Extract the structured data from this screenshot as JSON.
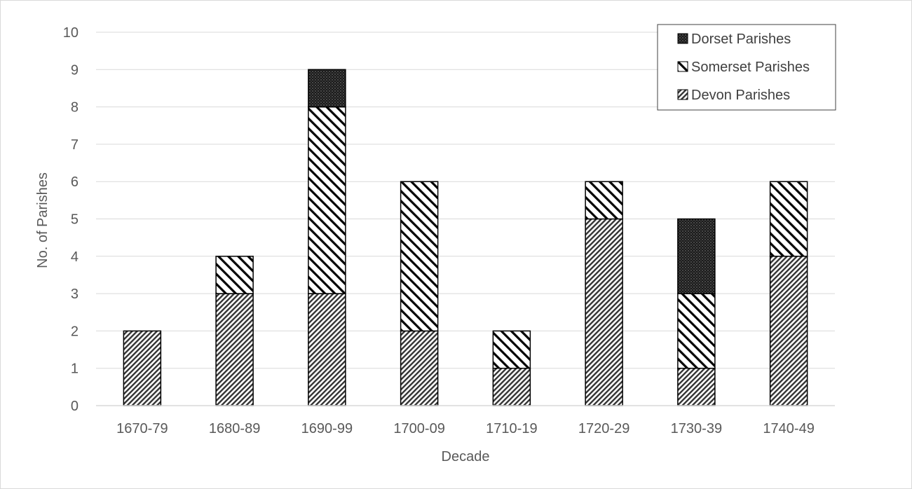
{
  "chart_data": {
    "type": "bar",
    "stacked": true,
    "categories": [
      "1670-79",
      "1680-89",
      "1690-99",
      "1700-09",
      "1710-19",
      "1720-29",
      "1730-39",
      "1740-49"
    ],
    "series": [
      {
        "name": "Devon Parishes",
        "values": [
          2,
          3,
          3,
          2,
          1,
          5,
          1,
          4
        ],
        "pattern": "fine-diagonal-hatch"
      },
      {
        "name": "Somerset Parishes",
        "values": [
          0,
          1,
          5,
          4,
          1,
          1,
          2,
          2
        ],
        "pattern": "wide-diagonal-hatch"
      },
      {
        "name": "Dorset Parishes",
        "values": [
          0,
          0,
          1,
          0,
          0,
          0,
          2,
          0
        ],
        "pattern": "dark-dotted"
      }
    ],
    "xlabel": "Decade",
    "ylabel": "No. of Parishes",
    "ylim": [
      0,
      10
    ],
    "yticks": [
      "0",
      "1",
      "2",
      "3",
      "4",
      "5",
      "6",
      "7",
      "8",
      "9",
      "10"
    ],
    "grid": true,
    "legend": {
      "position": "top-right",
      "order": [
        "Dorset Parishes",
        "Somerset Parishes",
        "Devon Parishes"
      ]
    }
  }
}
